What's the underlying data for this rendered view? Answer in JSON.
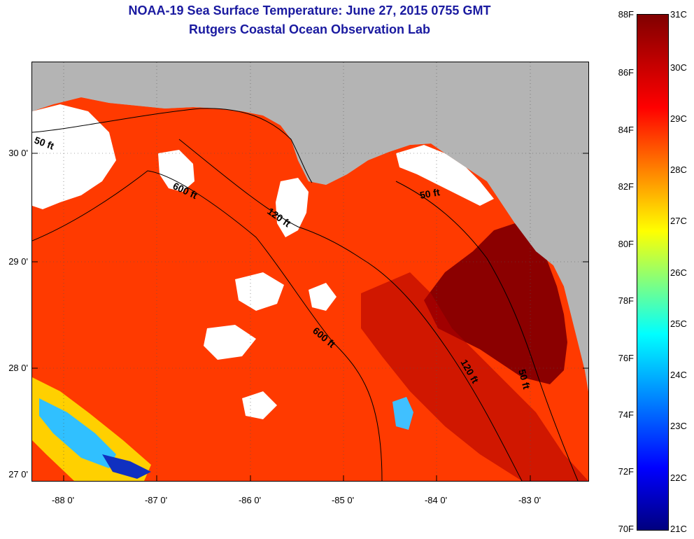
{
  "title_line1": "NOAA-19 Sea Surface Temperature:  June 27, 2015 0755 GMT",
  "title_line2": "Rutgers Coastal Ocean Observation Lab",
  "latitude_labels": [
    "30 0'",
    "29 0'",
    "28 0'",
    "27 0'"
  ],
  "longitude_labels": [
    "-88 0'",
    "-87 0'",
    "-86 0'",
    "-85 0'",
    "-84 0'",
    "-83 0'"
  ],
  "contour_labels": [
    "50 ft",
    "600 ft",
    "120 ft",
    "50 ft",
    "600 ft",
    "120 ft",
    "50 ft"
  ],
  "colorbar": {
    "fahrenheit_labels": [
      "88F",
      "86F",
      "84F",
      "82F",
      "80F",
      "78F",
      "76F",
      "74F",
      "72F",
      "70F"
    ],
    "celsius_labels": [
      "31C",
      "30C",
      "29C",
      "28C",
      "27C",
      "26C",
      "25C",
      "24C",
      "23C",
      "22C",
      "21C"
    ],
    "min_color": "#00007f",
    "max_color": "#800000"
  },
  "colors": {
    "title": "#1a1aa0",
    "land": "#b4b4b4",
    "cloud": "#ffffff",
    "warm_water": "#ff3000",
    "hot_water": "#8b0000"
  }
}
